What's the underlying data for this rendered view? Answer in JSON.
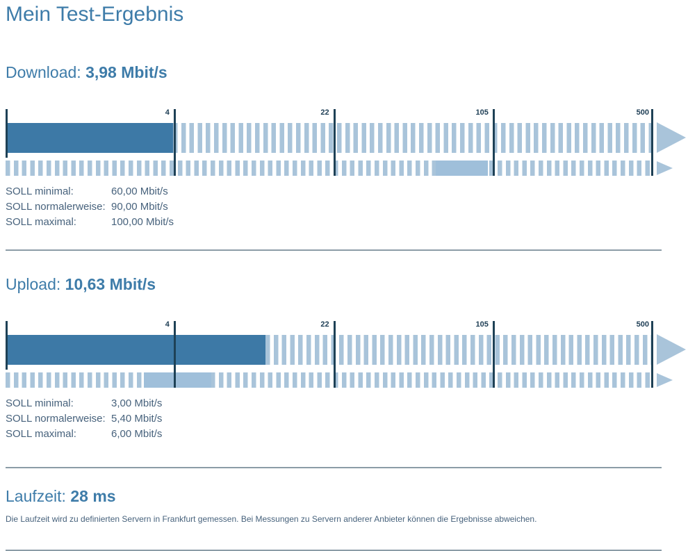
{
  "page": {
    "title": "Mein Test-Ergebnis"
  },
  "colors": {
    "heading": "#3e7ca9",
    "bar_solid": "#3d79a6",
    "bar_stripe": "#a9c4da",
    "soll_fill": "#9fbfda",
    "tick": "#1e4156",
    "tick_label": "#1e3e55",
    "text": "#47627c",
    "divider": "#8b9ca7"
  },
  "scale": {
    "unit": "Mbit/s",
    "anchors": [
      {
        "value": 0.8,
        "percent": 0
      },
      {
        "value": 4,
        "percent": 25.95
      },
      {
        "value": 22,
        "percent": 50.6
      },
      {
        "value": 105,
        "percent": 75.2
      },
      {
        "value": 500,
        "percent": 100
      }
    ],
    "marker_labels": [
      "4",
      "22",
      "105",
      "500"
    ]
  },
  "download": {
    "heading_label": "Download:",
    "heading_value": "3,98 Mbit/s",
    "measured_value": 3.98,
    "soll_min": 60,
    "soll_max": 100,
    "soll_rows": [
      {
        "label": "SOLL minimal:",
        "value": "60,00 Mbit/s"
      },
      {
        "label": "SOLL normalerweise:",
        "value": "90,00 Mbit/s"
      },
      {
        "label": "SOLL maximal:",
        "value": "100,00 Mbit/s"
      }
    ]
  },
  "upload": {
    "heading_label": "Upload:",
    "heading_value": "10,63 Mbit/s",
    "measured_value": 10.63,
    "soll_min": 3,
    "soll_max": 6,
    "soll_rows": [
      {
        "label": "SOLL minimal:",
        "value": "3,00 Mbit/s"
      },
      {
        "label": "SOLL normalerweise:",
        "value": "5,40 Mbit/s"
      },
      {
        "label": "SOLL maximal:",
        "value": "6,00 Mbit/s"
      }
    ]
  },
  "laufzeit": {
    "heading_label": "Laufzeit:",
    "heading_value": "28 ms",
    "note": "Die Laufzeit wird zu definierten Servern in Frankfurt gemessen. Bei Messungen zu Servern anderer Anbieter können die Ergebnisse abweichen."
  },
  "chart_data": [
    {
      "type": "bar",
      "title": "Download gauge (log scale)",
      "scale_markers": [
        4,
        22,
        105,
        500
      ],
      "measured_mbits": 3.98,
      "soll_range_mbits": [
        60,
        100
      ],
      "xlabel": "Mbit/s"
    },
    {
      "type": "bar",
      "title": "Upload gauge (log scale)",
      "scale_markers": [
        4,
        22,
        105,
        500
      ],
      "measured_mbits": 10.63,
      "soll_range_mbits": [
        3,
        6
      ],
      "xlabel": "Mbit/s"
    }
  ]
}
